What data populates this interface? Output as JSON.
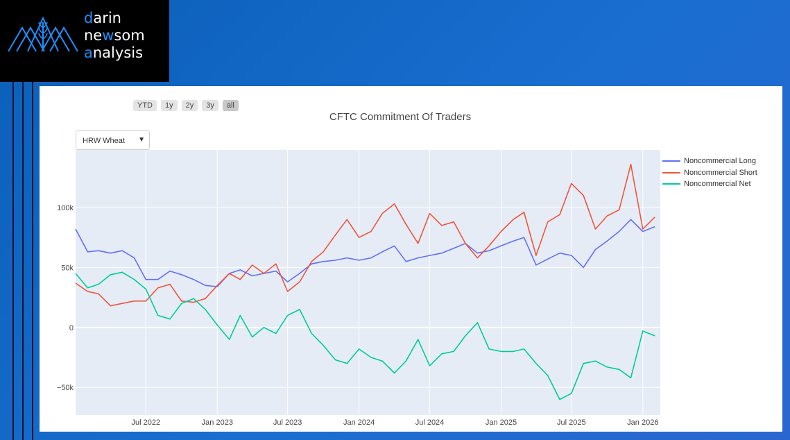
{
  "logo": {
    "line1": {
      "accent": "d",
      "rest": "arin"
    },
    "line2": {
      "pre": "ne",
      "accent": "w",
      "post": "som"
    },
    "line3": {
      "accent": "a",
      "rest": "nalysis"
    }
  },
  "range_selector": [
    "YTD",
    "1y",
    "2y",
    "3y",
    "all"
  ],
  "range_active": "all",
  "dropdown": {
    "selected": "HRW Wheat"
  },
  "chart_data": {
    "type": "line",
    "title": "CFTC Commitment Of Traders",
    "xlabel": "",
    "ylabel": "",
    "ylim": [
      -73000,
      148000
    ],
    "xlim": [
      "2022-01-01",
      "2026-02-15"
    ],
    "yticks": [
      {
        "v": -50000,
        "label": "−50k"
      },
      {
        "v": 0,
        "label": "0"
      },
      {
        "v": 50000,
        "label": "50k"
      },
      {
        "v": 100000,
        "label": "100k"
      }
    ],
    "xticks": [
      {
        "date": "2022-07-01",
        "label": "Jul 2022"
      },
      {
        "date": "2023-01-01",
        "label": "Jan 2023"
      },
      {
        "date": "2023-07-01",
        "label": "Jul 2023"
      },
      {
        "date": "2024-01-01",
        "label": "Jan 2024"
      },
      {
        "date": "2024-07-01",
        "label": "Jul 2024"
      },
      {
        "date": "2025-01-01",
        "label": "Jan 2025"
      },
      {
        "date": "2025-07-01",
        "label": "Jul 2025"
      },
      {
        "date": "2026-01-01",
        "label": "Jan 2026"
      }
    ],
    "x": [
      "2022-01-01",
      "2022-02-01",
      "2022-03-01",
      "2022-04-01",
      "2022-05-01",
      "2022-06-01",
      "2022-07-01",
      "2022-08-01",
      "2022-09-01",
      "2022-10-01",
      "2022-11-01",
      "2022-12-01",
      "2023-01-01",
      "2023-02-01",
      "2023-03-01",
      "2023-04-01",
      "2023-05-01",
      "2023-06-01",
      "2023-07-01",
      "2023-08-01",
      "2023-09-01",
      "2023-10-01",
      "2023-11-01",
      "2023-12-01",
      "2024-01-01",
      "2024-02-01",
      "2024-03-01",
      "2024-04-01",
      "2024-05-01",
      "2024-06-01",
      "2024-07-01",
      "2024-08-01",
      "2024-09-01",
      "2024-10-01",
      "2024-11-01",
      "2024-12-01",
      "2025-01-01",
      "2025-02-01",
      "2025-03-01",
      "2025-04-01",
      "2025-05-01",
      "2025-06-01",
      "2025-07-01",
      "2025-08-01",
      "2025-09-01",
      "2025-10-01",
      "2025-11-01",
      "2025-12-01",
      "2026-01-01",
      "2026-02-01"
    ],
    "series": [
      {
        "name": "Noncommercial Long",
        "color": "#636efa",
        "values": [
          82000,
          63000,
          64000,
          62000,
          64000,
          58000,
          40000,
          40000,
          47000,
          44000,
          40000,
          35000,
          34000,
          45000,
          48000,
          43000,
          45000,
          47000,
          38000,
          45000,
          53000,
          55000,
          56000,
          58000,
          56000,
          58000,
          63000,
          68000,
          55000,
          58000,
          60000,
          62000,
          66000,
          70000,
          62000,
          64000,
          68000,
          72000,
          75000,
          52000,
          57000,
          62000,
          60000,
          50000,
          65000,
          72000,
          80000,
          90000,
          80000,
          84000
        ]
      },
      {
        "name": "Noncommercial Short",
        "color": "#ef553b",
        "values": [
          37000,
          30000,
          28000,
          18000,
          20000,
          22000,
          22000,
          33000,
          36000,
          22000,
          21000,
          24000,
          35000,
          45000,
          40000,
          52000,
          45000,
          53000,
          30000,
          38000,
          55000,
          63000,
          77000,
          90000,
          75000,
          80000,
          95000,
          103000,
          86000,
          70000,
          95000,
          85000,
          88000,
          70000,
          58000,
          68000,
          80000,
          90000,
          96000,
          60000,
          88000,
          94000,
          120000,
          110000,
          82000,
          93000,
          98000,
          136000,
          82000,
          92000
        ]
      },
      {
        "name": "Noncommercial Net",
        "color": "#00cc96",
        "values": [
          45000,
          33000,
          36000,
          44000,
          46000,
          40000,
          32000,
          10000,
          7000,
          20000,
          24000,
          15000,
          2000,
          -10000,
          10000,
          -8000,
          0,
          -5000,
          10000,
          15000,
          -5000,
          -15000,
          -27000,
          -30000,
          -18000,
          -25000,
          -28000,
          -38000,
          -28000,
          -10000,
          -32000,
          -22000,
          -20000,
          -7000,
          4000,
          -18000,
          -20000,
          -20000,
          -18000,
          -30000,
          -40000,
          -60000,
          -55000,
          -30000,
          -28000,
          -33000,
          -35000,
          -42000,
          -3000,
          -7000
        ]
      }
    ]
  }
}
